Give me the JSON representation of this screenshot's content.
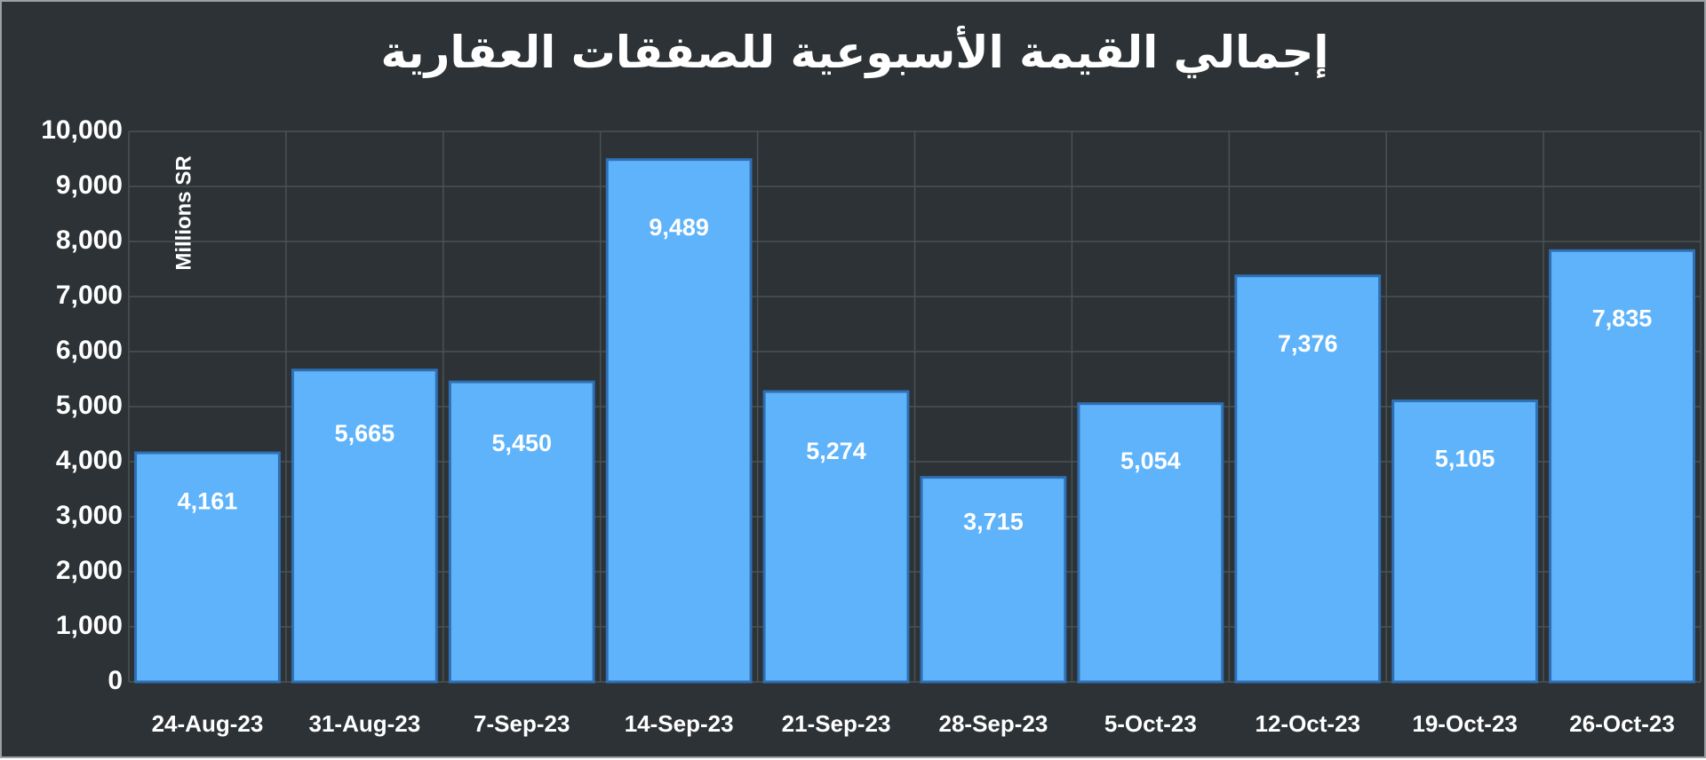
{
  "chart_data": {
    "type": "bar",
    "title": "إجمالي القيمة الأسبوعية للصفقات العقارية",
    "ylabel": "Millions SR",
    "xlabel": "",
    "categories": [
      "24-Aug-23",
      "31-Aug-23",
      "7-Sep-23",
      "14-Sep-23",
      "21-Sep-23",
      "28-Sep-23",
      "5-Oct-23",
      "12-Oct-23",
      "19-Oct-23",
      "26-Oct-23"
    ],
    "values": [
      4161,
      5665,
      5450,
      9489,
      5274,
      3715,
      5054,
      7376,
      5105,
      7835
    ],
    "data_labels": [
      "4,161",
      "5,665",
      "5,450",
      "9,489",
      "5,274",
      "3,715",
      "5,054",
      "7,376",
      "5,105",
      "7,835"
    ],
    "ylim": [
      0,
      10000
    ],
    "yticks": [
      0,
      1000,
      2000,
      3000,
      4000,
      5000,
      6000,
      7000,
      8000,
      9000,
      10000
    ],
    "ytick_labels": [
      "0",
      "1,000",
      "2,000",
      "3,000",
      "4,000",
      "5,000",
      "6,000",
      "7,000",
      "8,000",
      "9,000",
      "10,000"
    ],
    "grid": true,
    "legend": "none",
    "colors": {
      "background": "#2c3235",
      "bar": "#5fb3fa",
      "bar_edge": "#2f6fb3",
      "grid": "#4a5255",
      "text": "#ffffff"
    }
  }
}
